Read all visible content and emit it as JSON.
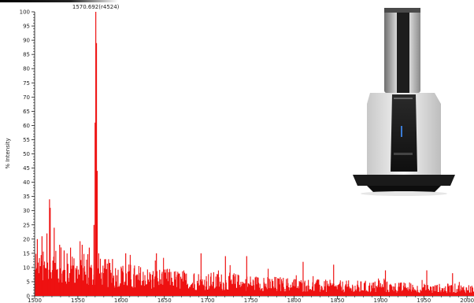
{
  "chart_data": {
    "type": "bar",
    "ylabel": "% Intensity",
    "xlabel": "",
    "xlim": [
      1500,
      2008
    ],
    "ylim": [
      0,
      100
    ],
    "x_ticks": [
      "1500",
      "1550",
      "1600",
      "1650",
      "1700",
      "1750",
      "1800",
      "1850",
      "1900",
      "1950",
      "2000"
    ],
    "y_ticks": [
      "0",
      "5",
      "10",
      "15",
      "20",
      "25",
      "30",
      "35",
      "40",
      "45",
      "50",
      "55",
      "60",
      "65",
      "70",
      "75",
      "80",
      "85",
      "90",
      "95",
      "100"
    ],
    "series_color": "#ee1111",
    "annotation": {
      "text": "1570.692(r4524)",
      "x": 1570.692,
      "y": 100
    },
    "major_peaks": [
      {
        "x": 1570.7,
        "y": 100
      },
      {
        "x": 1571.5,
        "y": 89
      },
      {
        "x": 1569.9,
        "y": 61
      },
      {
        "x": 1572.4,
        "y": 44
      },
      {
        "x": 1568.6,
        "y": 25
      },
      {
        "x": 1517.2,
        "y": 34
      },
      {
        "x": 1518.0,
        "y": 31
      },
      {
        "x": 1503.1,
        "y": 20
      },
      {
        "x": 1508.5,
        "y": 21
      },
      {
        "x": 1514.2,
        "y": 22
      },
      {
        "x": 1522.6,
        "y": 24
      },
      {
        "x": 1528.9,
        "y": 18
      },
      {
        "x": 1534.1,
        "y": 16
      },
      {
        "x": 1541.5,
        "y": 17
      },
      {
        "x": 1555.0,
        "y": 18
      },
      {
        "x": 1563.2,
        "y": 17
      },
      {
        "x": 1574.1,
        "y": 15
      },
      {
        "x": 1590.0,
        "y": 13
      },
      {
        "x": 1605.3,
        "y": 15
      },
      {
        "x": 1640.8,
        "y": 15
      },
      {
        "x": 1692.4,
        "y": 15
      },
      {
        "x": 1720.6,
        "y": 14
      },
      {
        "x": 1745.2,
        "y": 14
      },
      {
        "x": 1810.4,
        "y": 12
      },
      {
        "x": 1845.7,
        "y": 11
      },
      {
        "x": 1905.6,
        "y": 9
      },
      {
        "x": 1953.4,
        "y": 9
      },
      {
        "x": 1983.2,
        "y": 8
      }
    ],
    "baseline_noise": {
      "description": "dense noisy baseline decreasing from ~17% near m/z 1500 to ~5% near m/z 2008",
      "points": [
        {
          "x": 1500,
          "y": 15
        },
        {
          "x": 1550,
          "y": 14
        },
        {
          "x": 1600,
          "y": 11
        },
        {
          "x": 1650,
          "y": 9
        },
        {
          "x": 1700,
          "y": 8
        },
        {
          "x": 1750,
          "y": 7
        },
        {
          "x": 1800,
          "y": 6
        },
        {
          "x": 1850,
          "y": 5
        },
        {
          "x": 1900,
          "y": 5
        },
        {
          "x": 1950,
          "y": 4
        },
        {
          "x": 2008,
          "y": 4
        }
      ]
    }
  },
  "instrument_image": {
    "icon": "mass-spectrometer-instrument-icon"
  }
}
